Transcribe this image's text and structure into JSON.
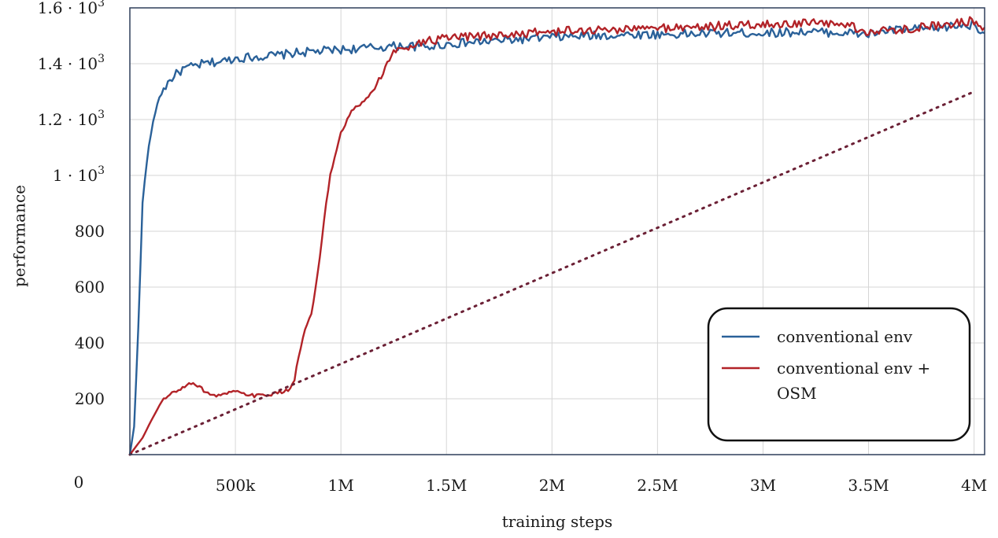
{
  "chart_data": {
    "type": "line",
    "title": "",
    "xlabel": "training steps",
    "ylabel": "performance",
    "xlim": [
      0,
      4050000
    ],
    "ylim": [
      0,
      1600
    ],
    "grid": true,
    "legend_position": "bottom-right",
    "x_ticks": [
      {
        "value": 500000,
        "label": "500k"
      },
      {
        "value": 1000000,
        "label": "1M"
      },
      {
        "value": 1500000,
        "label": "1.5M"
      },
      {
        "value": 2000000,
        "label": "2M"
      },
      {
        "value": 2500000,
        "label": "2.5M"
      },
      {
        "value": 3000000,
        "label": "3M"
      },
      {
        "value": 3500000,
        "label": "3.5M"
      },
      {
        "value": 4000000,
        "label": "4M"
      }
    ],
    "y_ticks": [
      {
        "value": 200,
        "label": "200"
      },
      {
        "value": 400,
        "label": "400"
      },
      {
        "value": 600,
        "label": "600"
      },
      {
        "value": 800,
        "label": "800"
      },
      {
        "value": 1000,
        "label": "1 · 10^3"
      },
      {
        "value": 1200,
        "label": "1.2 · 10^3"
      },
      {
        "value": 1400,
        "label": "1.4 · 10^3"
      },
      {
        "value": 1600,
        "label": "1.6 · 10^3"
      }
    ],
    "origin_label": "0",
    "series": [
      {
        "name": "conventional env",
        "color": "#2a6199",
        "style": "solid",
        "x": [
          0,
          20000,
          40000,
          60000,
          80000,
          100000,
          130000,
          160000,
          200000,
          250000,
          300000,
          350000,
          400000,
          450000,
          500000,
          600000,
          700000,
          800000,
          900000,
          1000000,
          1100000,
          1200000,
          1300000,
          1400000,
          1500000,
          1600000,
          1700000,
          1800000,
          1900000,
          2000000,
          2200000,
          2400000,
          2600000,
          2800000,
          3000000,
          3200000,
          3400000,
          3500000,
          3600000,
          3800000,
          3900000,
          4000000,
          4050000
        ],
        "y": [
          0,
          100,
          450,
          900,
          1050,
          1150,
          1260,
          1310,
          1350,
          1380,
          1390,
          1400,
          1405,
          1410,
          1420,
          1425,
          1430,
          1440,
          1445,
          1450,
          1455,
          1460,
          1465,
          1460,
          1470,
          1475,
          1480,
          1485,
          1490,
          1495,
          1500,
          1505,
          1505,
          1510,
          1510,
          1515,
          1510,
          1505,
          1520,
          1525,
          1535,
          1540,
          1510
        ]
      },
      {
        "name": "conventional env + OSM",
        "color": "#b22328",
        "style": "solid",
        "x": [
          0,
          30000,
          60000,
          100000,
          150000,
          200000,
          250000,
          300000,
          350000,
          400000,
          500000,
          550000,
          600000,
          700000,
          750000,
          780000,
          800000,
          830000,
          860000,
          880000,
          900000,
          930000,
          950000,
          1000000,
          1050000,
          1100000,
          1150000,
          1200000,
          1250000,
          1300000,
          1400000,
          1500000,
          1600000,
          1800000,
          2000000,
          2200000,
          2400000,
          2600000,
          2800000,
          3000000,
          3200000,
          3400000,
          3500000,
          3600000,
          3800000,
          3900000,
          4000000,
          4050000
        ],
        "y": [
          0,
          30,
          60,
          120,
          190,
          220,
          240,
          260,
          230,
          210,
          225,
          215,
          210,
          220,
          230,
          270,
          350,
          450,
          500,
          600,
          700,
          900,
          1000,
          1150,
          1230,
          1260,
          1300,
          1370,
          1440,
          1460,
          1480,
          1490,
          1495,
          1505,
          1515,
          1520,
          1525,
          1530,
          1535,
          1540,
          1545,
          1540,
          1510,
          1520,
          1535,
          1545,
          1555,
          1530
        ]
      },
      {
        "name": "",
        "color": "#6b2035",
        "style": "dotted",
        "x": [
          0,
          4000000
        ],
        "y": [
          0,
          1300
        ]
      }
    ],
    "legend": [
      {
        "label": "conventional env",
        "color": "#2a6199"
      },
      {
        "label": "conventional env +",
        "label_line2": "OSM",
        "color": "#b22328"
      }
    ]
  }
}
